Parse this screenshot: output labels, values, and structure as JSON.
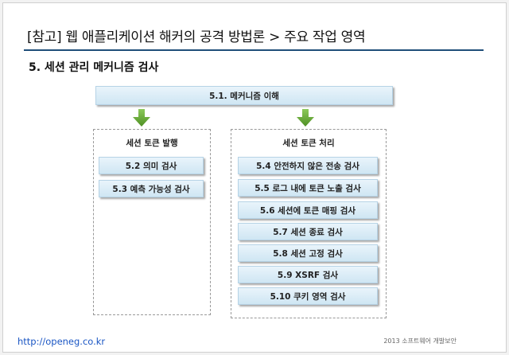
{
  "title": "[참고] 웹 애플리케이션 해커의 공격 방법론 > 주요 작업 영역",
  "subtitle": "5. 세션 관리 메커니즘 검사",
  "top_box": "5.1. 메커니즘 이해",
  "left_panel": {
    "title": "세션 토큰 발행",
    "items": [
      "5.2 의미 검사",
      "5.3 예측 가능성 검사"
    ]
  },
  "right_panel": {
    "title": "세션 토큰 처리",
    "items": [
      "5.4 안전하지 않은 전송 검사",
      "5.5 로그 내에 토큰 노출 검사",
      "5.6 세션에 토큰 매핑 검사",
      "5.7 세션 종료 검사",
      "5.8 세션 고정 검사",
      "5.9 XSRF 검사",
      "5.10 쿠키 영역 검사"
    ]
  },
  "arrow_color": "#6aaa35",
  "footer_link": "http://openeg.co.kr",
  "footer_text": "2013 소프트웨어 개발보안"
}
